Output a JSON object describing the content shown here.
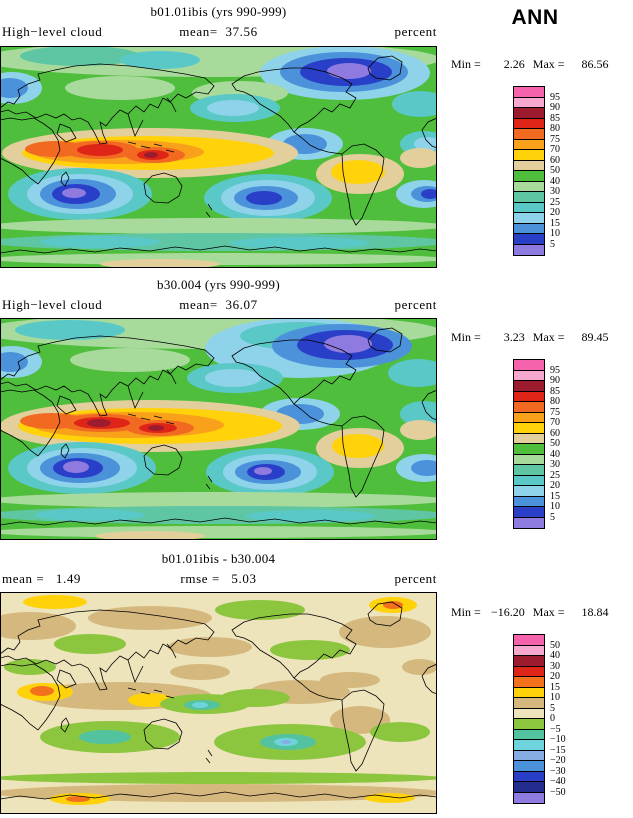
{
  "chart_data": {
    "type": "heatmap",
    "subtype": "lat-lon filled-contour world maps with colorbars",
    "season": "ANN",
    "variable": "High-level cloud",
    "units": "percent",
    "panels": [
      {
        "title": "b01.01ibis (yrs 990-999)",
        "left_label": "High−level cloud",
        "center_label": "mean=  37.56",
        "right_label": "percent",
        "min_label": "Min =",
        "min_value": "2.26",
        "max_label": "Max =",
        "max_value": "86.56",
        "colorbar": {
          "labels": [
            "95",
            "90",
            "85",
            "80",
            "75",
            "70",
            "60",
            "50",
            "40",
            "30",
            "25",
            "20",
            "15",
            "10",
            "5"
          ],
          "colors": [
            "#F463AC",
            "#F7A8CF",
            "#9D1B2F",
            "#DE2517",
            "#F26A21",
            "#F9A11B",
            "#FFD20A",
            "#E3CF9B",
            "#4FBE3C",
            "#A8DB9B",
            "#5FC6A3",
            "#5BC8C8",
            "#8FD3EA",
            "#4C92DB",
            "#2A3FC8",
            "#8F7ADF"
          ]
        },
        "map": {
          "bg": "#4FBE3C",
          "blobs": [
            [
              210,
              13,
              230,
              18,
              9
            ],
            [
              80,
              10,
              60,
              10,
              10
            ],
            [
              160,
              14,
              40,
              9,
              11
            ],
            [
              345,
              27,
              85,
              27,
              12
            ],
            [
              344,
              26,
              64,
              20,
              13
            ],
            [
              346,
              26,
              46,
              14,
              14
            ],
            [
              349,
              25,
              22,
              8,
              15
            ],
            [
              12,
              42,
              30,
              16,
              12
            ],
            [
              10,
              42,
              18,
              10,
              13
            ],
            [
              120,
              42,
              55,
              12,
              9
            ],
            [
              240,
              47,
              48,
              12,
              9
            ],
            [
              235,
              62,
              45,
              14,
              11
            ],
            [
              233,
              62,
              26,
              8,
              12
            ],
            [
              420,
              58,
              28,
              13,
              11
            ],
            [
              305,
              98,
              38,
              16,
              12
            ],
            [
              305,
              98,
              22,
              10,
              13
            ],
            [
              424,
              98,
              24,
              13,
              11
            ],
            [
              427,
              98,
              13,
              7,
              12
            ],
            [
              150,
              107,
              148,
              25,
              7
            ],
            [
              148,
              107,
              126,
              17,
              6
            ],
            [
              118,
              106,
              86,
              12,
              5
            ],
            [
              55,
              103,
              30,
              8,
              4
            ],
            [
              100,
              104,
              38,
              9,
              4
            ],
            [
              100,
              104,
              23,
              6,
              3
            ],
            [
              155,
              109,
              30,
              8,
              4
            ],
            [
              153,
              109,
              16,
              5,
              3
            ],
            [
              151,
              109,
              7,
              3,
              2
            ],
            [
              360,
              128,
              44,
              20,
              7
            ],
            [
              358,
              126,
              27,
              12,
              6
            ],
            [
              420,
              112,
              20,
              10,
              7
            ],
            [
              80,
              148,
              72,
              26,
              11
            ],
            [
              80,
              148,
              53,
              20,
              12
            ],
            [
              78,
              148,
              38,
              15,
              13
            ],
            [
              76,
              148,
              24,
              10,
              14
            ],
            [
              74,
              147,
              12,
              5,
              15
            ],
            [
              268,
              152,
              64,
              24,
              11
            ],
            [
              268,
              152,
              47,
              18,
              12
            ],
            [
              266,
              152,
              32,
              12,
              13
            ],
            [
              264,
              152,
              18,
              7,
              14
            ],
            [
              424,
              148,
              28,
              14,
              12
            ],
            [
              427,
              148,
              16,
              8,
              13
            ],
            [
              430,
              148,
              9,
              5,
              14
            ],
            [
              218,
              180,
              230,
              8,
              9
            ],
            [
              218,
              196,
              230,
              9,
              10
            ],
            [
              100,
              196,
              60,
              6,
              11
            ],
            [
              300,
              197,
              70,
              6,
              11
            ],
            [
              218,
              213,
              230,
              6,
              9
            ],
            [
              160,
              218,
              60,
              5,
              7
            ]
          ]
        }
      },
      {
        "title": "b30.004 (yrs 990-999)",
        "left_label": "High−level cloud",
        "center_label": "mean=  36.07",
        "right_label": "percent",
        "min_label": "Min =",
        "min_value": "3.23",
        "max_label": "Max =",
        "max_value": "89.45",
        "colorbar": {
          "labels": [
            "95",
            "90",
            "85",
            "80",
            "75",
            "70",
            "60",
            "50",
            "40",
            "30",
            "25",
            "20",
            "15",
            "10",
            "5"
          ],
          "colors": [
            "#F463AC",
            "#F7A8CF",
            "#9D1B2F",
            "#DE2517",
            "#F26A21",
            "#F9A11B",
            "#FFD20A",
            "#E3CF9B",
            "#4FBE3C",
            "#A8DB9B",
            "#5FC6A3",
            "#5BC8C8",
            "#8FD3EA",
            "#4C92DB",
            "#2A3FC8",
            "#8F7ADF"
          ]
        },
        "map": {
          "bg": "#4FBE3C",
          "blobs": [
            [
              210,
              13,
              230,
              18,
              9
            ],
            [
              70,
              12,
              55,
              10,
              11
            ],
            [
              300,
              30,
              95,
              30,
              12
            ],
            [
              300,
              18,
              60,
              14,
              11
            ],
            [
              342,
              28,
              70,
              22,
              13
            ],
            [
              345,
              27,
              48,
              15,
              14
            ],
            [
              348,
              26,
              24,
              9,
              15
            ],
            [
              12,
              44,
              30,
              16,
              12
            ],
            [
              10,
              44,
              18,
              10,
              13
            ],
            [
              130,
              42,
              60,
              12,
              9
            ],
            [
              235,
              60,
              48,
              15,
              11
            ],
            [
              233,
              60,
              28,
              9,
              12
            ],
            [
              418,
              55,
              30,
              14,
              11
            ],
            [
              300,
              96,
              40,
              16,
              12
            ],
            [
              300,
              96,
              24,
              10,
              13
            ],
            [
              424,
              96,
              24,
              13,
              11
            ],
            [
              150,
              108,
              150,
              26,
              7
            ],
            [
              150,
              108,
              132,
              18,
              6
            ],
            [
              128,
              107,
              96,
              13,
              5
            ],
            [
              52,
              103,
              32,
              8,
              4
            ],
            [
              103,
              105,
              44,
              9,
              4
            ],
            [
              102,
              105,
              28,
              6,
              3
            ],
            [
              99,
              105,
              12,
              4,
              2
            ],
            [
              160,
              110,
              34,
              8,
              4
            ],
            [
              158,
              110,
              19,
              5,
              3
            ],
            [
              156,
              110,
              8,
              3,
              2
            ],
            [
              360,
              130,
              44,
              20,
              7
            ],
            [
              358,
              128,
              26,
              12,
              6
            ],
            [
              420,
              112,
              20,
              10,
              7
            ],
            [
              82,
              150,
              74,
              26,
              11
            ],
            [
              82,
              150,
              55,
              20,
              12
            ],
            [
              80,
              150,
              40,
              15,
              13
            ],
            [
              78,
              150,
              25,
              10,
              14
            ],
            [
              76,
              149,
              13,
              6,
              15
            ],
            [
              270,
              154,
              64,
              24,
              11
            ],
            [
              270,
              154,
              47,
              18,
              12
            ],
            [
              268,
              154,
              33,
              12,
              13
            ],
            [
              266,
              154,
              19,
              8,
              14
            ],
            [
              263,
              153,
              9,
              4,
              15
            ],
            [
              424,
              150,
              28,
              14,
              12
            ],
            [
              427,
              150,
              16,
              8,
              13
            ],
            [
              218,
              182,
              230,
              8,
              9
            ],
            [
              218,
              197,
              230,
              9,
              10
            ],
            [
              90,
              197,
              55,
              6,
              11
            ],
            [
              310,
              198,
              65,
              6,
              11
            ],
            [
              218,
              214,
              230,
              6,
              9
            ],
            [
              150,
              218,
              55,
              5,
              7
            ]
          ]
        }
      },
      {
        "title": "b01.01ibis - b30.004",
        "left_label": "mean =   1.49",
        "center_label": "rmse =   5.03",
        "right_label": "percent",
        "min_label": "Min =",
        "min_value": "−16.20",
        "max_label": "Max =",
        "max_value": "18.84",
        "colorbar": {
          "labels": [
            "50",
            "40",
            "30",
            "20",
            "15",
            "10",
            "5",
            "0",
            "−5",
            "−10",
            "−15",
            "−20",
            "−30",
            "−40",
            "−50"
          ],
          "colors": [
            "#F463AC",
            "#F7A8CF",
            "#9D1B2F",
            "#DE2517",
            "#F3701D",
            "#FFD20A",
            "#D5B87E",
            "#EEE4BC",
            "#8CC63F",
            "#52C39E",
            "#6FD3DC",
            "#86ACE4",
            "#4C92DB",
            "#2A3FC8",
            "#232C8F",
            "#8F7ADF"
          ]
        },
        "map": {
          "bg": "#EEE4BC",
          "blobs": [
            [
              55,
              10,
              32,
              7,
              5
            ],
            [
              30,
              34,
              46,
              14,
              6
            ],
            [
              150,
              26,
              62,
              12,
              6
            ],
            [
              260,
              18,
              45,
              10,
              8
            ],
            [
              90,
              52,
              36,
              10,
              8
            ],
            [
              210,
              55,
              42,
              10,
              6
            ],
            [
              385,
              40,
              46,
              16,
              6
            ],
            [
              393,
              13,
              24,
              8,
              5
            ],
            [
              393,
              13,
              10,
              4,
              4
            ],
            [
              310,
              58,
              40,
              10,
              8
            ],
            [
              30,
              75,
              26,
              8,
              8
            ],
            [
              200,
              80,
              30,
              8,
              6
            ],
            [
              350,
              88,
              30,
              8,
              6
            ],
            [
              420,
              75,
              18,
              8,
              6
            ],
            [
              120,
              104,
              92,
              14,
              6
            ],
            [
              300,
              100,
              50,
              12,
              6
            ],
            [
              45,
              100,
              28,
              9,
              5
            ],
            [
              42,
              99,
              12,
              5,
              4
            ],
            [
              150,
              108,
              22,
              7,
              5
            ],
            [
              205,
              112,
              45,
              10,
              8
            ],
            [
              202,
              113,
              18,
              5,
              9
            ],
            [
              200,
              113,
              8,
              3,
              10
            ],
            [
              255,
              106,
              35,
              9,
              8
            ],
            [
              360,
              128,
              30,
              14,
              6
            ],
            [
              110,
              145,
              70,
              16,
              8
            ],
            [
              105,
              145,
              26,
              7,
              9
            ],
            [
              290,
              150,
              76,
              18,
              8
            ],
            [
              288,
              150,
              28,
              8,
              9
            ],
            [
              286,
              150,
              12,
              4,
              10
            ],
            [
              286,
              150,
              5,
              2,
              11
            ],
            [
              400,
              140,
              30,
              10,
              8
            ],
            [
              218,
              186,
              225,
              6,
              8
            ],
            [
              218,
              201,
              225,
              9,
              6
            ],
            [
              80,
              207,
              30,
              6,
              5
            ],
            [
              78,
              207,
              12,
              3,
              4
            ],
            [
              390,
              206,
              25,
              5,
              5
            ]
          ]
        }
      }
    ]
  }
}
